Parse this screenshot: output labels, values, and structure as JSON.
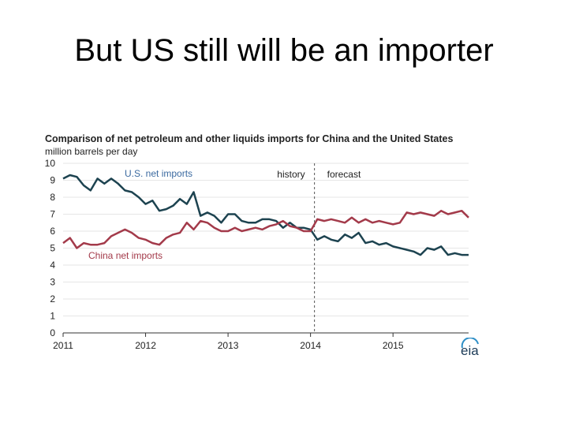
{
  "slide": {
    "title": "But US still will be an importer"
  },
  "colors": {
    "us": "#1d4350",
    "china": "#a33a4a",
    "grid": "#e6e6e6",
    "axis": "#333333",
    "divider": "#555555"
  },
  "logo": {
    "text": "eia",
    "icon": "eia-logo"
  },
  "chart_data": {
    "type": "line",
    "title": "Comparison of net petroleum and other liquids imports for China and the United States",
    "subtitle": "million barrels per day",
    "ylim": [
      0,
      10
    ],
    "y_ticks": [
      "0",
      "1",
      "2",
      "3",
      "4",
      "5",
      "6",
      "7",
      "8",
      "9",
      "10"
    ],
    "x_ticks": [
      "2011",
      "2012",
      "2013",
      "2014",
      "2015"
    ],
    "x_range": [
      "2011-01",
      "2015-12"
    ],
    "grid": true,
    "annotations": {
      "history": "history",
      "forecast": "forecast",
      "forecast_start": "2014-01"
    },
    "series": [
      {
        "name": "U.S. net imports",
        "x": [
          "2011-01",
          "2011-02",
          "2011-03",
          "2011-04",
          "2011-05",
          "2011-06",
          "2011-07",
          "2011-08",
          "2011-09",
          "2011-10",
          "2011-11",
          "2011-12",
          "2012-01",
          "2012-02",
          "2012-03",
          "2012-04",
          "2012-05",
          "2012-06",
          "2012-07",
          "2012-08",
          "2012-09",
          "2012-10",
          "2012-11",
          "2012-12",
          "2013-01",
          "2013-02",
          "2013-03",
          "2013-04",
          "2013-05",
          "2013-06",
          "2013-07",
          "2013-08",
          "2013-09",
          "2013-10",
          "2013-11",
          "2013-12",
          "2014-01",
          "2014-02",
          "2014-03",
          "2014-04",
          "2014-05",
          "2014-06",
          "2014-07",
          "2014-08",
          "2014-09",
          "2014-10",
          "2014-11",
          "2014-12",
          "2015-01",
          "2015-02",
          "2015-03",
          "2015-04",
          "2015-05",
          "2015-06",
          "2015-07",
          "2015-08",
          "2015-09",
          "2015-10",
          "2015-11",
          "2015-12"
        ],
        "values": [
          9.1,
          9.3,
          9.2,
          8.7,
          8.4,
          9.1,
          8.8,
          9.1,
          8.8,
          8.4,
          8.3,
          8.0,
          7.6,
          7.8,
          7.2,
          7.3,
          7.5,
          7.9,
          7.6,
          8.3,
          6.9,
          7.1,
          6.9,
          6.5,
          7.0,
          7.0,
          6.6,
          6.5,
          6.5,
          6.7,
          6.7,
          6.6,
          6.2,
          6.5,
          6.2,
          6.2,
          6.1,
          5.5,
          5.7,
          5.5,
          5.4,
          5.8,
          5.6,
          5.9,
          5.3,
          5.4,
          5.2,
          5.3,
          5.1,
          5.0,
          4.9,
          4.8,
          4.6,
          5.0,
          4.9,
          5.1,
          4.6,
          4.7,
          4.6,
          4.6
        ]
      },
      {
        "name": "China net imports",
        "x": [
          "2011-01",
          "2011-02",
          "2011-03",
          "2011-04",
          "2011-05",
          "2011-06",
          "2011-07",
          "2011-08",
          "2011-09",
          "2011-10",
          "2011-11",
          "2011-12",
          "2012-01",
          "2012-02",
          "2012-03",
          "2012-04",
          "2012-05",
          "2012-06",
          "2012-07",
          "2012-08",
          "2012-09",
          "2012-10",
          "2012-11",
          "2012-12",
          "2013-01",
          "2013-02",
          "2013-03",
          "2013-04",
          "2013-05",
          "2013-06",
          "2013-07",
          "2013-08",
          "2013-09",
          "2013-10",
          "2013-11",
          "2013-12",
          "2014-01",
          "2014-02",
          "2014-03",
          "2014-04",
          "2014-05",
          "2014-06",
          "2014-07",
          "2014-08",
          "2014-09",
          "2014-10",
          "2014-11",
          "2014-12",
          "2015-01",
          "2015-02",
          "2015-03",
          "2015-04",
          "2015-05",
          "2015-06",
          "2015-07",
          "2015-08",
          "2015-09",
          "2015-10",
          "2015-11",
          "2015-12"
        ],
        "values": [
          5.3,
          5.6,
          5.0,
          5.3,
          5.2,
          5.2,
          5.3,
          5.7,
          5.9,
          6.1,
          5.9,
          5.6,
          5.5,
          5.3,
          5.2,
          5.6,
          5.8,
          5.9,
          6.5,
          6.1,
          6.6,
          6.5,
          6.2,
          6.0,
          6.0,
          6.2,
          6.0,
          6.1,
          6.2,
          6.1,
          6.3,
          6.4,
          6.6,
          6.3,
          6.2,
          6.0,
          6.0,
          6.7,
          6.6,
          6.7,
          6.6,
          6.5,
          6.8,
          6.5,
          6.7,
          6.5,
          6.6,
          6.5,
          6.4,
          6.5,
          7.1,
          7.0,
          7.1,
          7.0,
          6.9,
          7.2,
          7.0,
          7.1,
          7.2,
          6.8
        ]
      }
    ]
  }
}
